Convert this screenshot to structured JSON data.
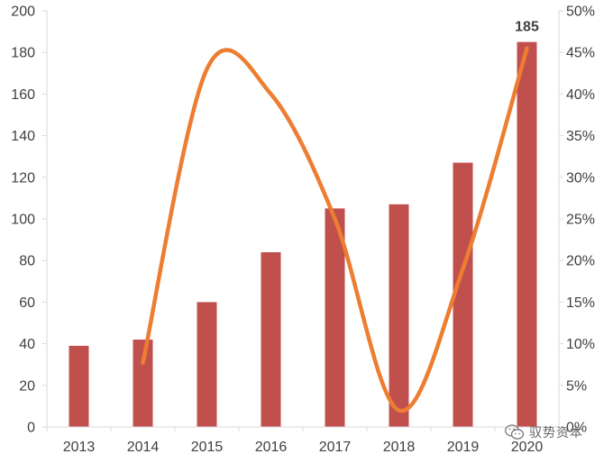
{
  "chart_data": {
    "type": "bar",
    "categories": [
      "2013",
      "2014",
      "2015",
      "2016",
      "2017",
      "2018",
      "2019",
      "2020"
    ],
    "series": [
      {
        "type": "bar",
        "axis": "left",
        "color": "#C0504D",
        "values": [
          39,
          42,
          60,
          84,
          105,
          107,
          127,
          185
        ]
      },
      {
        "type": "line",
        "axis": "right",
        "color": "#ED7D31",
        "smooth": true,
        "values": [
          null,
          0.077,
          0.43,
          0.4,
          0.25,
          0.02,
          0.19,
          0.455
        ]
      }
    ],
    "data_labels": [
      {
        "category": "2020",
        "text": "185"
      }
    ],
    "ylim": [
      0,
      200
    ],
    "yticks": [
      "0",
      "20",
      "40",
      "60",
      "80",
      "100",
      "120",
      "140",
      "160",
      "180",
      "200"
    ],
    "y2lim": [
      0,
      0.5
    ],
    "y2ticks": [
      "0%",
      "5%",
      "10%",
      "15%",
      "20%",
      "25%",
      "30%",
      "35%",
      "40%",
      "45%",
      "50%"
    ],
    "grid": false,
    "legend": "none"
  },
  "watermark": {
    "text": "驭势资本",
    "icon": "wechat-icon"
  }
}
